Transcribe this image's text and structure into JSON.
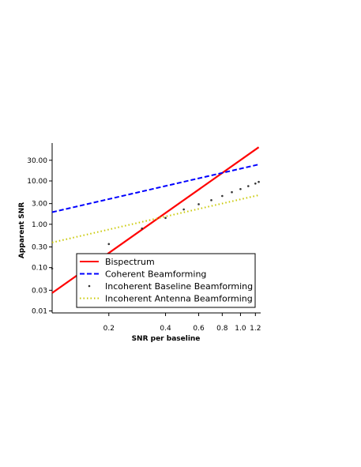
{
  "chart_data": {
    "type": "line",
    "title": "",
    "xlabel": "SNR per baseline",
    "ylabel": "Apparent SNR",
    "x_scale": "log",
    "y_scale": "log",
    "xlim": [
      0.1,
      1.28
    ],
    "ylim": [
      0.009,
      75
    ],
    "x_ticks": [
      0.2,
      0.4,
      0.6,
      0.8,
      1.0,
      1.2
    ],
    "x_tick_labels": [
      "0.2",
      "0.4",
      "0.6",
      "0.8",
      "1.0",
      "1.2"
    ],
    "y_ticks": [
      0.01,
      0.03,
      0.1,
      0.3,
      1.0,
      3.0,
      10.0,
      30.0
    ],
    "y_tick_labels": [
      "0.01",
      "0.03",
      "0.10",
      "0.30",
      "1.00",
      "3.00",
      "10.00",
      "30.00"
    ],
    "grid": false,
    "legend_position": "lower-right",
    "series": [
      {
        "name": "Bispectrum",
        "style": "solid",
        "color": "#ff0000",
        "x": [
          0.1,
          1.25
        ],
        "y": [
          0.026,
          60
        ]
      },
      {
        "name": "Coherent Beamforming",
        "style": "dashed",
        "color": "#0000ff",
        "x": [
          0.1,
          1.25
        ],
        "y": [
          1.9,
          24
        ]
      },
      {
        "name": "Incoherent Baseline Beamforming",
        "style": "markers",
        "color": "#333333",
        "x": [
          0.1,
          0.2,
          0.3,
          0.4,
          0.5,
          0.6,
          0.7,
          0.8,
          0.9,
          1.0,
          1.1,
          1.2,
          1.25
        ],
        "y": [
          0.095,
          0.35,
          0.8,
          1.4,
          2.2,
          2.9,
          3.6,
          4.5,
          5.5,
          6.5,
          7.6,
          8.7,
          9.5
        ]
      },
      {
        "name": "Incoherent Antenna Beamforming",
        "style": "dashdot",
        "color": "#c8c800",
        "x": [
          0.1,
          1.25
        ],
        "y": [
          0.38,
          4.7
        ]
      }
    ]
  }
}
